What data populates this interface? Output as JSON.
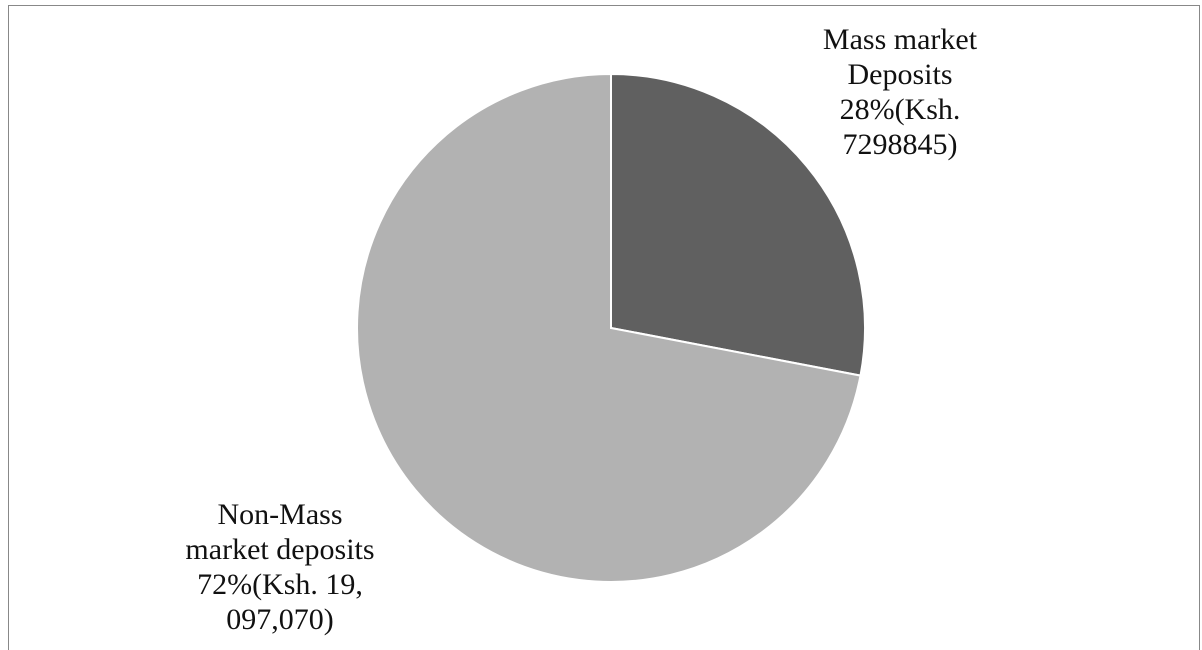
{
  "chart_data": {
    "type": "pie",
    "categories": [
      "Mass market Deposits",
      "Non-Mass market deposits"
    ],
    "values": [
      28,
      72
    ],
    "value_labels": [
      "28%(Ksh. 7298845)",
      "72%(Ksh. 19, 097,070)"
    ],
    "colors": [
      "#606060",
      "#b2b2b2"
    ]
  }
}
